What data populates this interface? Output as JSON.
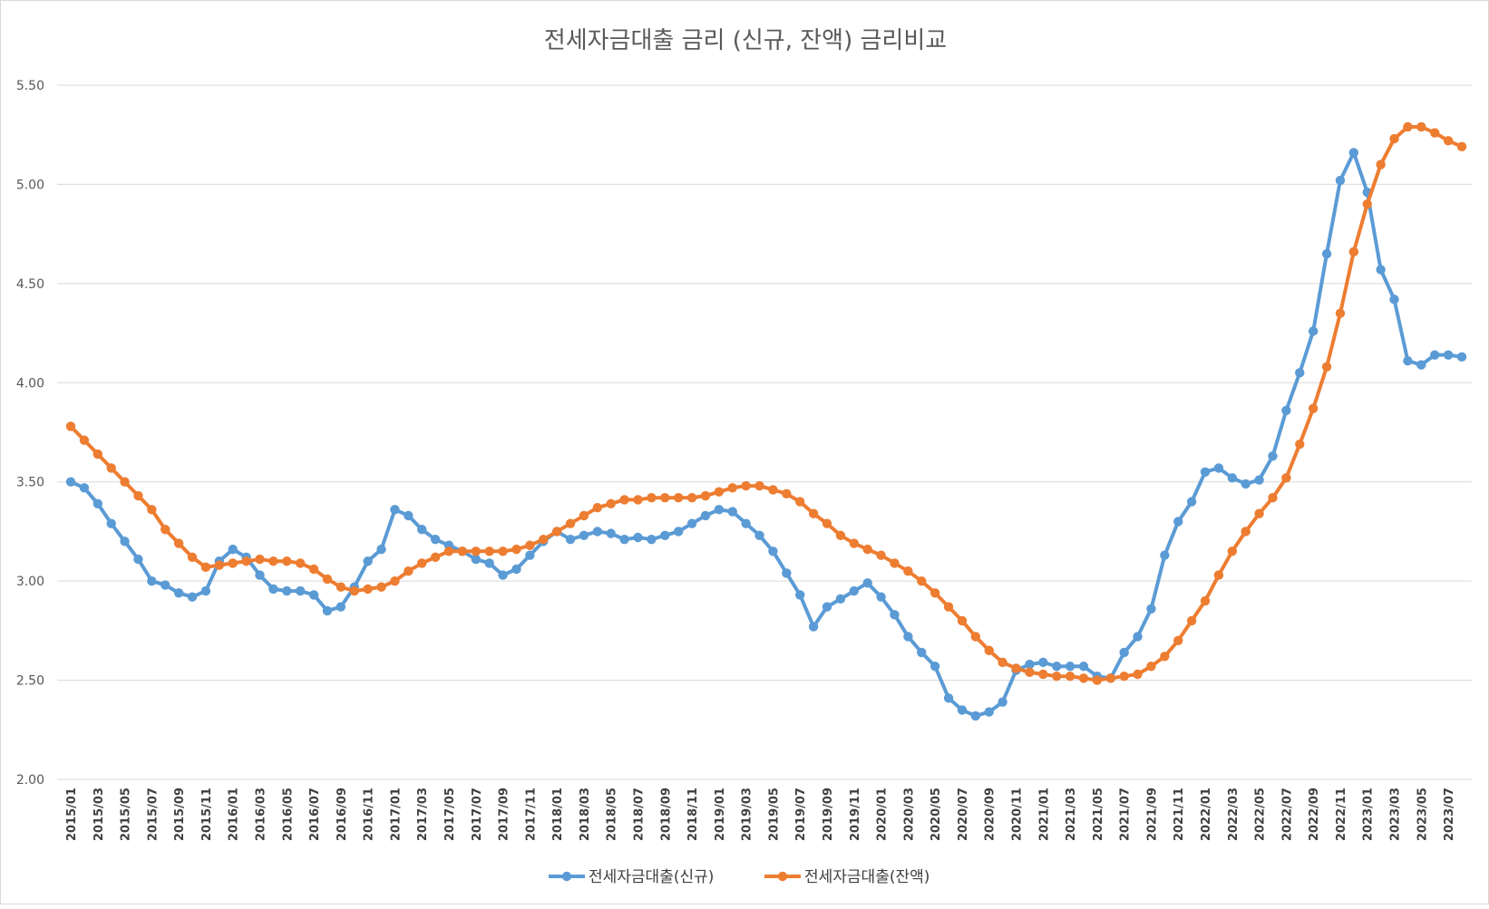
{
  "chart_data": {
    "type": "line",
    "title": "전세자금대출 금리 (신규, 잔액) 금리비교",
    "xlabel": "",
    "ylabel": "",
    "ylim": [
      2.0,
      5.5
    ],
    "yticks": [
      "2.00",
      "2.50",
      "3.00",
      "3.50",
      "4.00",
      "4.50",
      "5.00",
      "5.50"
    ],
    "grid": true,
    "legend_position": "bottom",
    "x": [
      "2015/01",
      "2015/02",
      "2015/03",
      "2015/04",
      "2015/05",
      "2015/06",
      "2015/07",
      "2015/08",
      "2015/09",
      "2015/10",
      "2015/11",
      "2015/12",
      "2016/01",
      "2016/02",
      "2016/03",
      "2016/04",
      "2016/05",
      "2016/06",
      "2016/07",
      "2016/08",
      "2016/09",
      "2016/10",
      "2016/11",
      "2016/12",
      "2017/01",
      "2017/02",
      "2017/03",
      "2017/04",
      "2017/05",
      "2017/06",
      "2017/07",
      "2017/08",
      "2017/09",
      "2017/10",
      "2017/11",
      "2017/12",
      "2018/01",
      "2018/02",
      "2018/03",
      "2018/04",
      "2018/05",
      "2018/06",
      "2018/07",
      "2018/08",
      "2018/09",
      "2018/10",
      "2018/11",
      "2018/12",
      "2019/01",
      "2019/02",
      "2019/03",
      "2019/04",
      "2019/05",
      "2019/06",
      "2019/07",
      "2019/08",
      "2019/09",
      "2019/10",
      "2019/11",
      "2019/12",
      "2020/01",
      "2020/02",
      "2020/03",
      "2020/04",
      "2020/05",
      "2020/06",
      "2020/07",
      "2020/08",
      "2020/09",
      "2020/10",
      "2020/11",
      "2020/12",
      "2021/01",
      "2021/02",
      "2021/03",
      "2021/04",
      "2021/05",
      "2021/06",
      "2021/07",
      "2021/08",
      "2021/09",
      "2021/10",
      "2021/11",
      "2021/12",
      "2022/01",
      "2022/02",
      "2022/03",
      "2022/04",
      "2022/05",
      "2022/06",
      "2022/07",
      "2022/08",
      "2022/09",
      "2022/10",
      "2022/11",
      "2022/12",
      "2023/01",
      "2023/02",
      "2023/03",
      "2023/04",
      "2023/05",
      "2023/06",
      "2023/07",
      "2023/08"
    ],
    "xtick_labels": [
      "2015/01",
      "2015/03",
      "2015/05",
      "2015/07",
      "2015/09",
      "2015/11",
      "2016/01",
      "2016/03",
      "2016/05",
      "2016/07",
      "2016/09",
      "2016/11",
      "2017/01",
      "2017/03",
      "2017/05",
      "2017/07",
      "2017/09",
      "2017/11",
      "2018/01",
      "2018/03",
      "2018/05",
      "2018/07",
      "2018/09",
      "2018/11",
      "2019/01",
      "2019/03",
      "2019/05",
      "2019/07",
      "2019/09",
      "2019/11",
      "2020/01",
      "2020/03",
      "2020/05",
      "2020/07",
      "2020/09",
      "2020/11",
      "2021/01",
      "2021/03",
      "2021/05",
      "2021/07",
      "2021/09",
      "2021/11",
      "2022/01",
      "2022/03",
      "2022/05",
      "2022/07",
      "2022/09",
      "2022/11",
      "2023/01",
      "2023/03",
      "2023/05",
      "2023/07"
    ],
    "series": [
      {
        "name": "전세자금대출(신규)",
        "color": "#5b9bd5",
        "values": [
          3.5,
          3.47,
          3.39,
          3.29,
          3.2,
          3.11,
          3.0,
          2.98,
          2.94,
          2.92,
          2.95,
          3.1,
          3.16,
          3.12,
          3.03,
          2.96,
          2.95,
          2.95,
          2.93,
          2.85,
          2.87,
          2.97,
          3.1,
          3.16,
          3.36,
          3.33,
          3.26,
          3.21,
          3.18,
          3.15,
          3.11,
          3.09,
          3.03,
          3.06,
          3.13,
          3.2,
          3.25,
          3.21,
          3.23,
          3.25,
          3.24,
          3.21,
          3.22,
          3.21,
          3.23,
          3.25,
          3.29,
          3.33,
          3.36,
          3.35,
          3.29,
          3.23,
          3.15,
          3.04,
          2.93,
          2.77,
          2.87,
          2.91,
          2.95,
          2.99,
          2.92,
          2.83,
          2.72,
          2.64,
          2.57,
          2.41,
          2.35,
          2.32,
          2.34,
          2.39,
          2.55,
          2.58,
          2.59,
          2.57,
          2.57,
          2.57,
          2.52,
          2.51,
          2.64,
          2.72,
          2.86,
          3.13,
          3.3,
          3.4,
          3.55,
          3.57,
          3.52,
          3.49,
          3.51,
          3.63,
          3.86,
          4.05,
          4.26,
          4.65,
          5.02,
          5.16,
          4.96,
          4.57,
          4.42,
          4.11,
          4.09,
          4.14,
          4.14,
          4.13
        ]
      },
      {
        "name": "전세자금대출(잔액)",
        "color": "#ed7d31",
        "values": [
          3.78,
          3.71,
          3.64,
          3.57,
          3.5,
          3.43,
          3.36,
          3.26,
          3.19,
          3.12,
          3.07,
          3.08,
          3.09,
          3.1,
          3.11,
          3.1,
          3.1,
          3.09,
          3.06,
          3.01,
          2.97,
          2.95,
          2.96,
          2.97,
          3.0,
          3.05,
          3.09,
          3.12,
          3.15,
          3.15,
          3.15,
          3.15,
          3.15,
          3.16,
          3.18,
          3.21,
          3.25,
          3.29,
          3.33,
          3.37,
          3.39,
          3.41,
          3.41,
          3.42,
          3.42,
          3.42,
          3.42,
          3.43,
          3.45,
          3.47,
          3.48,
          3.48,
          3.46,
          3.44,
          3.4,
          3.34,
          3.29,
          3.23,
          3.19,
          3.16,
          3.13,
          3.09,
          3.05,
          3.0,
          2.94,
          2.87,
          2.8,
          2.72,
          2.65,
          2.59,
          2.56,
          2.54,
          2.53,
          2.52,
          2.52,
          2.51,
          2.5,
          2.51,
          2.52,
          2.53,
          2.57,
          2.62,
          2.7,
          2.8,
          2.9,
          3.03,
          3.15,
          3.25,
          3.34,
          3.42,
          3.52,
          3.69,
          3.87,
          4.08,
          4.35,
          4.66,
          4.9,
          5.1,
          5.23,
          5.29,
          5.29,
          5.26,
          5.22,
          5.19
        ]
      }
    ]
  }
}
